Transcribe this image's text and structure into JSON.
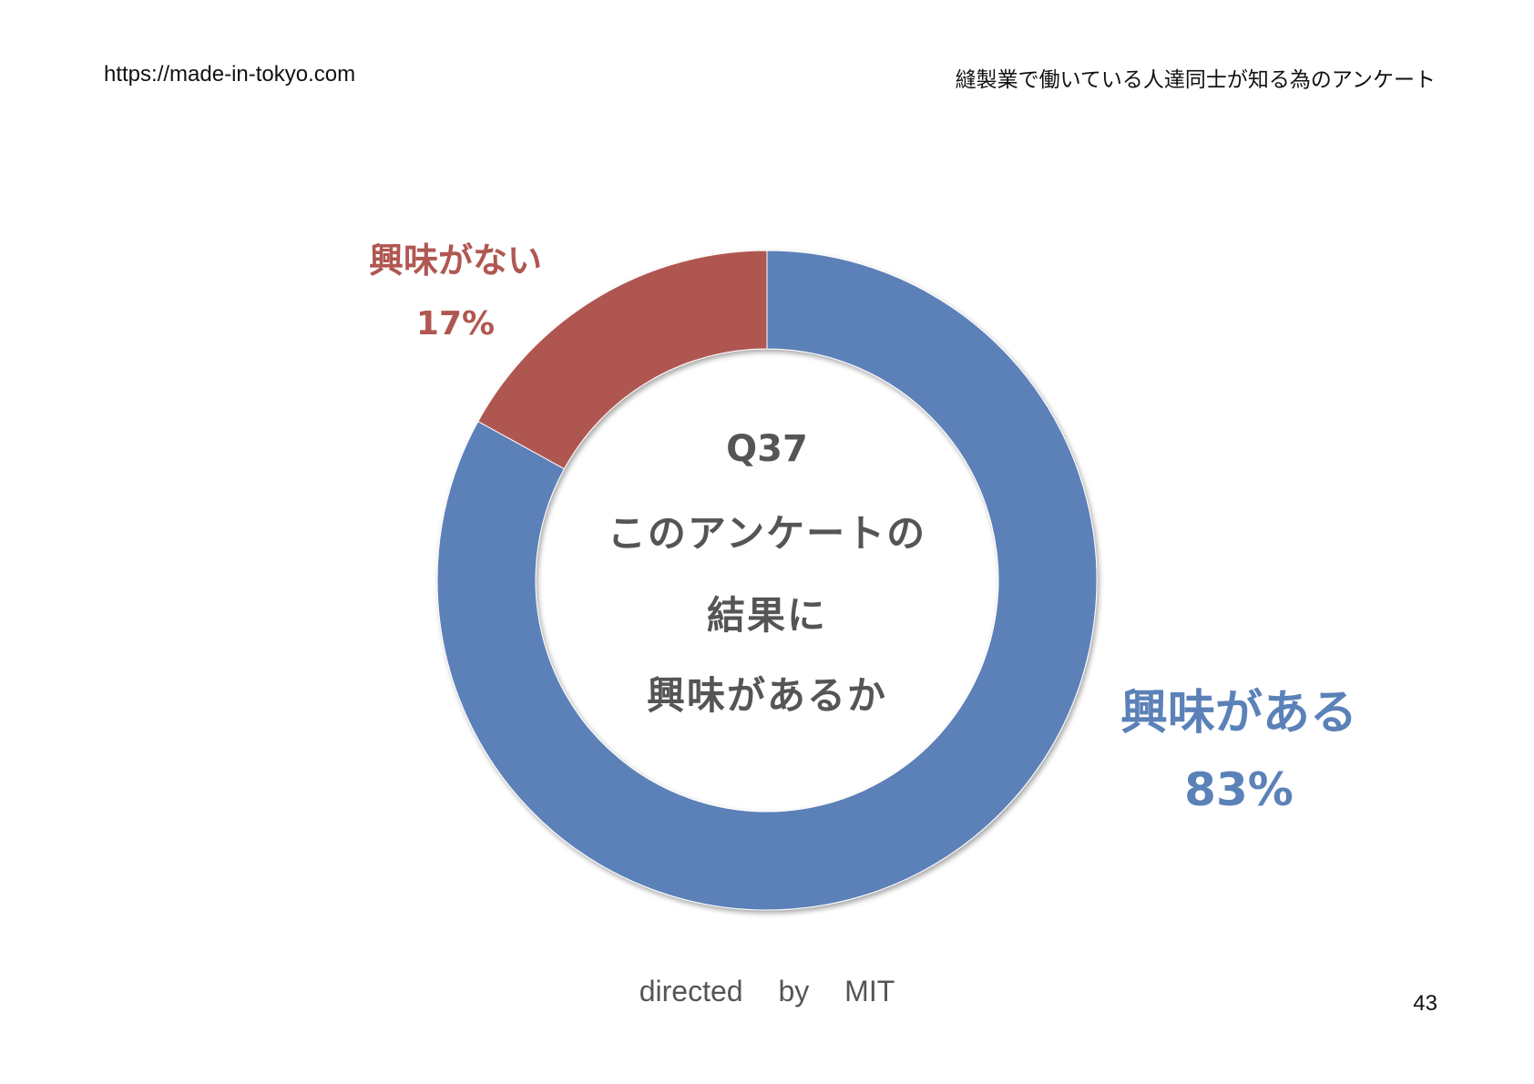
{
  "header": {
    "site_url": "https://made-in-tokyo.com",
    "survey_title": "縫製業で働いている人達同士が知る為のアンケート"
  },
  "chart_data": {
    "type": "pie",
    "donut": true,
    "center_text": {
      "question_number": "Q37",
      "line1": "このアンケートの",
      "line2": "結果に",
      "line3": "興味があるか"
    },
    "slices": [
      {
        "label": "興味がある",
        "value": 83,
        "value_label": "83%",
        "color": "#5b80b8"
      },
      {
        "label": "興味がない",
        "value": 17,
        "value_label": "17%",
        "color": "#b05751"
      }
    ],
    "legend": "none"
  },
  "footer": {
    "credit": "directed by MIT",
    "page_number": "43"
  }
}
